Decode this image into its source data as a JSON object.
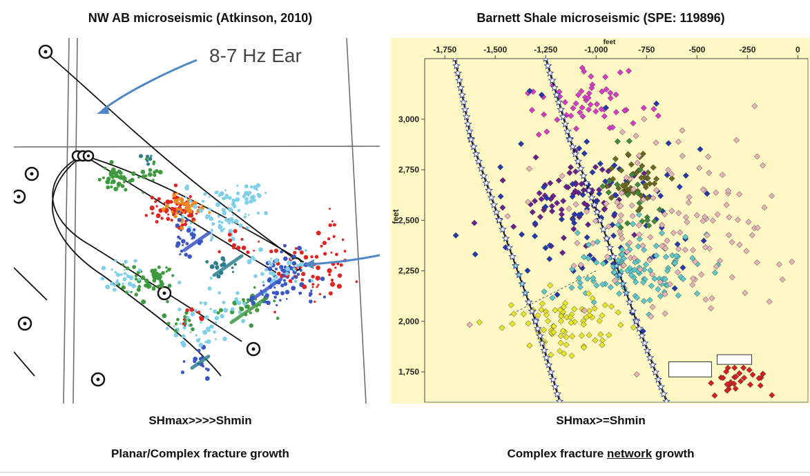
{
  "left_panel": {
    "title": "NW AB microseismic (Atkinson, 2010)",
    "annotation": "8-7 Hz Ear",
    "caption_stress": "SHmax>>>>Shmin",
    "caption_growth": "Planar/Complex fracture growth"
  },
  "right_panel": {
    "title": "Barnett Shale microseismic (SPE: 119896)",
    "caption_stress": "SHmax>=Shmin",
    "caption_growth_prefix": "Complex fracture ",
    "caption_growth_underlined": "network",
    "caption_growth_suffix": " growth"
  },
  "chart_data": {
    "type": "scatter",
    "title": "Barnett Shale microseismic (SPE: 119896)",
    "xlabel": "feet",
    "ylabel": "feet",
    "xlim": [
      -1850,
      50
    ],
    "ylim": [
      1600,
      3300
    ],
    "x_ticks": [
      -1750,
      -1500,
      -1250,
      -1000,
      -750,
      -500,
      -250,
      0
    ],
    "x_tick_labels": [
      "-1,750",
      "-1,500",
      "-1,250",
      "-1,000",
      "-750",
      "-500",
      "-250",
      "0"
    ],
    "y_ticks": [
      1750,
      2000,
      2250,
      2500,
      2750,
      3000
    ],
    "y_tick_labels": [
      "1,750",
      "2,000",
      "2,250",
      "2,500",
      "2,750",
      "3,000"
    ],
    "grid": false,
    "background": "#fdf8c4",
    "wells": [
      {
        "name": "well-1",
        "x": [
          -1700,
          -1620,
          -1480,
          -1300,
          -1180
        ],
        "y": [
          3300,
          2900,
          2500,
          2000,
          1600
        ]
      },
      {
        "name": "well-2",
        "x": [
          -1250,
          -1130,
          -980,
          -800,
          -650
        ],
        "y": [
          3300,
          2900,
          2500,
          2000,
          1600
        ]
      }
    ],
    "series": [
      {
        "name": "magenta",
        "color": "#d63cc8",
        "cx": -1050,
        "cy": 3070,
        "sx": 260,
        "sy": 140,
        "n": 55
      },
      {
        "name": "purple",
        "color": "#6a1f8e",
        "cx": -1150,
        "cy": 2600,
        "sx": 250,
        "sy": 180,
        "n": 70
      },
      {
        "name": "blue",
        "color": "#2438b0",
        "cx": -950,
        "cy": 2550,
        "sx": 430,
        "sy": 360,
        "n": 90
      },
      {
        "name": "olive",
        "color": "#6b6b1f",
        "cx": -800,
        "cy": 2700,
        "sx": 120,
        "sy": 150,
        "n": 45
      },
      {
        "name": "cyan",
        "color": "#5cc9cc",
        "cx": -780,
        "cy": 2250,
        "sx": 320,
        "sy": 160,
        "n": 110
      },
      {
        "name": "yellow",
        "color": "#e9e627",
        "cx": -1150,
        "cy": 1980,
        "sx": 240,
        "sy": 120,
        "n": 80
      },
      {
        "name": "pink",
        "color": "#e6b3b8",
        "cx": -620,
        "cy": 2450,
        "sx": 520,
        "sy": 430,
        "n": 140
      },
      {
        "name": "red",
        "color": "#d41f1f",
        "cx": -320,
        "cy": 1720,
        "sx": 140,
        "sy": 60,
        "n": 30
      },
      {
        "name": "green",
        "color": "#3e8a3e",
        "cx": -820,
        "cy": 2650,
        "sx": 150,
        "sy": 250,
        "n": 20
      }
    ]
  },
  "left_chart_data": {
    "type": "scatter",
    "description_series": [
      {
        "name": "green",
        "color": "#3d9a3d"
      },
      {
        "name": "red",
        "color": "#e0241f"
      },
      {
        "name": "orange",
        "color": "#f08a1d"
      },
      {
        "name": "light-blue",
        "color": "#7fd0e8"
      },
      {
        "name": "blue",
        "color": "#3a55c6"
      },
      {
        "name": "teal",
        "color": "#2b7e8c"
      }
    ]
  }
}
